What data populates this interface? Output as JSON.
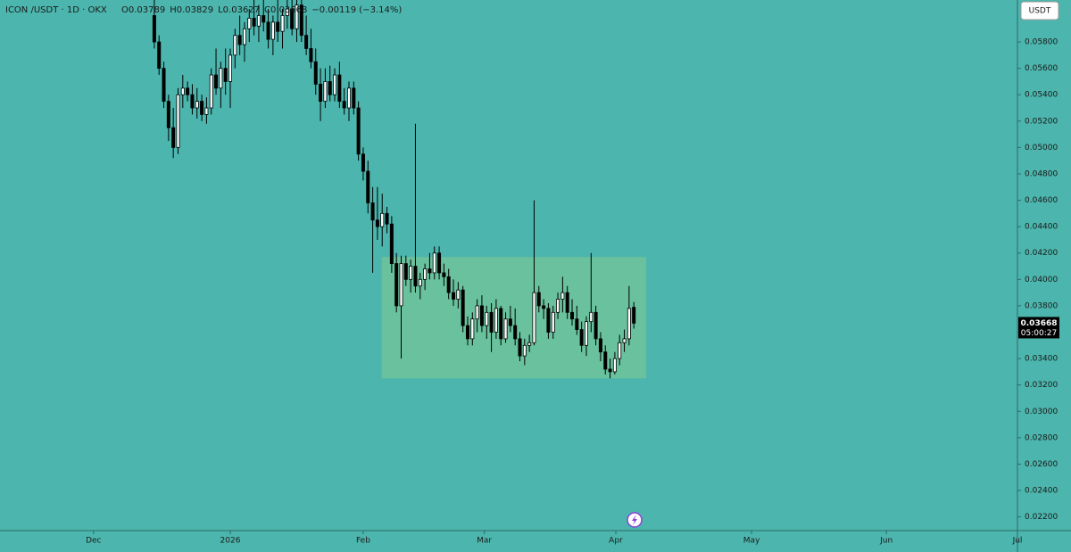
{
  "chart_data": {
    "type": "candlestick",
    "title": "ICON /USDT · 1D · OKX",
    "header_values": [
      "O0.03789",
      "H0.03829",
      "L0.03627",
      "C0.03668",
      "−0.00119 (−3.14%)"
    ],
    "currency_button": "USDT",
    "last_price": 0.03668,
    "last_price_label": "0.03668",
    "countdown": "05:00:27",
    "up_color": "#ffffff",
    "down_color": "#000000",
    "box_color": "#6fc39a",
    "range_box": {
      "x": [
        47.9,
        103.6
      ],
      "y": [
        0.0325,
        0.0417
      ]
    },
    "ohlc": [
      [
        0.06,
        0.0612,
        0.0575,
        0.058
      ],
      [
        0.058,
        0.0585,
        0.0555,
        0.056
      ],
      [
        0.056,
        0.0565,
        0.053,
        0.0535
      ],
      [
        0.0535,
        0.054,
        0.0505,
        0.0515
      ],
      [
        0.0515,
        0.053,
        0.0492,
        0.05
      ],
      [
        0.05,
        0.0545,
        0.0495,
        0.054
      ],
      [
        0.054,
        0.0555,
        0.053,
        0.0545
      ],
      [
        0.0545,
        0.055,
        0.0535,
        0.054
      ],
      [
        0.054,
        0.0548,
        0.0525,
        0.053
      ],
      [
        0.053,
        0.0545,
        0.0522,
        0.0535
      ],
      [
        0.0535,
        0.054,
        0.052,
        0.0525
      ],
      [
        0.0525,
        0.0538,
        0.0518,
        0.053
      ],
      [
        0.053,
        0.056,
        0.0525,
        0.0555
      ],
      [
        0.0555,
        0.0575,
        0.054,
        0.0545
      ],
      [
        0.0545,
        0.0565,
        0.053,
        0.056
      ],
      [
        0.056,
        0.0575,
        0.054,
        0.055
      ],
      [
        0.055,
        0.0575,
        0.053,
        0.057
      ],
      [
        0.057,
        0.059,
        0.056,
        0.0585
      ],
      [
        0.0585,
        0.06,
        0.057,
        0.0578
      ],
      [
        0.0578,
        0.0595,
        0.0565,
        0.059
      ],
      [
        0.059,
        0.0605,
        0.058,
        0.0598
      ],
      [
        0.0598,
        0.0612,
        0.0585,
        0.0592
      ],
      [
        0.0592,
        0.0608,
        0.058,
        0.06
      ],
      [
        0.06,
        0.0612,
        0.0588,
        0.0595
      ],
      [
        0.0595,
        0.0605,
        0.0575,
        0.0582
      ],
      [
        0.0582,
        0.06,
        0.057,
        0.0595
      ],
      [
        0.0595,
        0.0612,
        0.058,
        0.0588
      ],
      [
        0.0588,
        0.0605,
        0.0575,
        0.06
      ],
      [
        0.06,
        0.0612,
        0.059,
        0.0605
      ],
      [
        0.0605,
        0.0612,
        0.0585,
        0.059
      ],
      [
        0.059,
        0.0612,
        0.058,
        0.0608
      ],
      [
        0.0608,
        0.0612,
        0.058,
        0.0585
      ],
      [
        0.0585,
        0.06,
        0.057,
        0.0575
      ],
      [
        0.0575,
        0.059,
        0.056,
        0.0565
      ],
      [
        0.0565,
        0.0575,
        0.054,
        0.0548
      ],
      [
        0.0548,
        0.056,
        0.052,
        0.0535
      ],
      [
        0.0535,
        0.056,
        0.053,
        0.055
      ],
      [
        0.055,
        0.0562,
        0.0535,
        0.054
      ],
      [
        0.054,
        0.056,
        0.0535,
        0.0555
      ],
      [
        0.0555,
        0.0565,
        0.053,
        0.0535
      ],
      [
        0.0535,
        0.0545,
        0.0525,
        0.053
      ],
      [
        0.053,
        0.055,
        0.052,
        0.0545
      ],
      [
        0.0545,
        0.055,
        0.0525,
        0.053
      ],
      [
        0.053,
        0.0535,
        0.049,
        0.0495
      ],
      [
        0.0495,
        0.05,
        0.0475,
        0.0482
      ],
      [
        0.0482,
        0.049,
        0.045,
        0.0458
      ],
      [
        0.0458,
        0.047,
        0.0405,
        0.0445
      ],
      [
        0.0445,
        0.047,
        0.043,
        0.044
      ],
      [
        0.044,
        0.0465,
        0.0425,
        0.045
      ],
      [
        0.045,
        0.0455,
        0.0435,
        0.0442
      ],
      [
        0.0442,
        0.0448,
        0.0405,
        0.0412
      ],
      [
        0.0412,
        0.042,
        0.0375,
        0.038
      ],
      [
        0.038,
        0.0418,
        0.034,
        0.0412
      ],
      [
        0.0412,
        0.0418,
        0.0395,
        0.04
      ],
      [
        0.04,
        0.0415,
        0.039,
        0.041
      ],
      [
        0.041,
        0.0518,
        0.039,
        0.0395
      ],
      [
        0.0395,
        0.0405,
        0.0385,
        0.04
      ],
      [
        0.04,
        0.0412,
        0.0392,
        0.0408
      ],
      [
        0.0408,
        0.042,
        0.04,
        0.0405
      ],
      [
        0.0405,
        0.0425,
        0.04,
        0.042
      ],
      [
        0.042,
        0.0425,
        0.04,
        0.0405
      ],
      [
        0.0405,
        0.0412,
        0.0395,
        0.0402
      ],
      [
        0.0402,
        0.0408,
        0.0385,
        0.039
      ],
      [
        0.039,
        0.04,
        0.038,
        0.0385
      ],
      [
        0.0385,
        0.0398,
        0.0378,
        0.0392
      ],
      [
        0.0392,
        0.0395,
        0.036,
        0.0365
      ],
      [
        0.0365,
        0.0372,
        0.035,
        0.0355
      ],
      [
        0.0355,
        0.0375,
        0.035,
        0.037
      ],
      [
        0.037,
        0.0385,
        0.036,
        0.038
      ],
      [
        0.038,
        0.0388,
        0.036,
        0.0365
      ],
      [
        0.0365,
        0.038,
        0.0355,
        0.0375
      ],
      [
        0.0375,
        0.0382,
        0.0345,
        0.036
      ],
      [
        0.036,
        0.0385,
        0.0355,
        0.0378
      ],
      [
        0.0378,
        0.038,
        0.035,
        0.0355
      ],
      [
        0.0355,
        0.0375,
        0.0352,
        0.037
      ],
      [
        0.037,
        0.038,
        0.036,
        0.0365
      ],
      [
        0.0365,
        0.0378,
        0.035,
        0.0355
      ],
      [
        0.0355,
        0.036,
        0.0338,
        0.0342
      ],
      [
        0.0342,
        0.0355,
        0.0335,
        0.035
      ],
      [
        0.035,
        0.0358,
        0.0345,
        0.0352
      ],
      [
        0.0352,
        0.046,
        0.035,
        0.039
      ],
      [
        0.039,
        0.0395,
        0.0375,
        0.038
      ],
      [
        0.038,
        0.0385,
        0.037,
        0.0378
      ],
      [
        0.0378,
        0.0382,
        0.0355,
        0.036
      ],
      [
        0.036,
        0.038,
        0.0355,
        0.0375
      ],
      [
        0.0375,
        0.039,
        0.037,
        0.0385
      ],
      [
        0.0385,
        0.0402,
        0.0375,
        0.039
      ],
      [
        0.039,
        0.0395,
        0.037,
        0.0375
      ],
      [
        0.0375,
        0.0385,
        0.0365,
        0.037
      ],
      [
        0.037,
        0.038,
        0.0358,
        0.0362
      ],
      [
        0.0362,
        0.0368,
        0.0345,
        0.035
      ],
      [
        0.035,
        0.0372,
        0.0342,
        0.0368
      ],
      [
        0.0368,
        0.042,
        0.036,
        0.0375
      ],
      [
        0.0375,
        0.038,
        0.035,
        0.0355
      ],
      [
        0.0355,
        0.036,
        0.0338,
        0.0345
      ],
      [
        0.0345,
        0.035,
        0.0328,
        0.0332
      ],
      [
        0.0332,
        0.034,
        0.0325,
        0.033
      ],
      [
        0.033,
        0.0345,
        0.0328,
        0.034
      ],
      [
        0.034,
        0.0358,
        0.0335,
        0.0352
      ],
      [
        0.0352,
        0.0362,
        0.0345,
        0.0355
      ],
      [
        0.0355,
        0.0395,
        0.035,
        0.0378
      ],
      [
        0.03789,
        0.03829,
        0.03627,
        0.03668
      ]
    ],
    "xlim": [
      -32.5,
      181.8
    ],
    "xticks": [
      {
        "value": -12.8,
        "label": "Dec"
      },
      {
        "value": 16.0,
        "label": "2026"
      },
      {
        "value": 44.0,
        "label": "Feb"
      },
      {
        "value": 69.5,
        "label": "Mar"
      },
      {
        "value": 97.2,
        "label": "Apr"
      },
      {
        "value": 125.8,
        "label": "May"
      },
      {
        "value": 154.2,
        "label": "Jun"
      },
      {
        "value": 181.8,
        "label": "Jul"
      }
    ],
    "ylim": [
      0.02096,
      0.06118
    ],
    "yticks": [
      {
        "value": 0.022,
        "label": "0.02200"
      },
      {
        "value": 0.024,
        "label": "0.02400"
      },
      {
        "value": 0.026,
        "label": "0.02600"
      },
      {
        "value": 0.028,
        "label": "0.02800"
      },
      {
        "value": 0.03,
        "label": "0.03000"
      },
      {
        "value": 0.032,
        "label": "0.03200"
      },
      {
        "value": 0.034,
        "label": "0.03400"
      },
      {
        "value": 0.036,
        "label": "0.03600"
      },
      {
        "value": 0.038,
        "label": "0.03800"
      },
      {
        "value": 0.04,
        "label": "0.04000"
      },
      {
        "value": 0.042,
        "label": "0.04200"
      },
      {
        "value": 0.044,
        "label": "0.04400"
      },
      {
        "value": 0.046,
        "label": "0.04600"
      },
      {
        "value": 0.048,
        "label": "0.04800"
      },
      {
        "value": 0.05,
        "label": "0.05000"
      },
      {
        "value": 0.052,
        "label": "0.05200"
      },
      {
        "value": 0.054,
        "label": "0.05400"
      },
      {
        "value": 0.056,
        "label": "0.05600"
      },
      {
        "value": 0.058,
        "label": "0.05800"
      }
    ],
    "grid": false
  }
}
